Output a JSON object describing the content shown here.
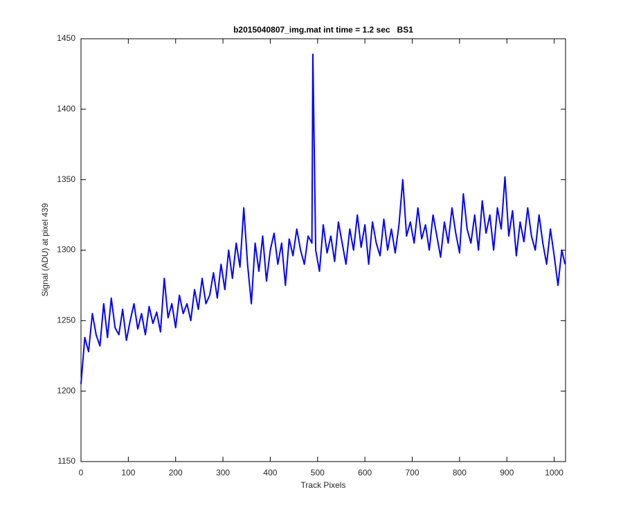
{
  "chart_data": {
    "type": "line",
    "title": "b2015040807_img.mat int time = 1.2 sec   BS1",
    "xlabel": "Track Pixels",
    "ylabel": "Signal (ADU) at pixel 439",
    "xlim": [
      0,
      1024
    ],
    "ylim": [
      1150,
      1450
    ],
    "xticks": [
      0,
      100,
      200,
      300,
      400,
      500,
      600,
      700,
      800,
      900,
      1000
    ],
    "yticks": [
      1150,
      1200,
      1250,
      1300,
      1350,
      1400,
      1450
    ],
    "grid": false,
    "x": [
      0,
      8,
      16,
      24,
      32,
      40,
      48,
      56,
      64,
      72,
      80,
      88,
      96,
      104,
      112,
      120,
      128,
      136,
      144,
      152,
      160,
      168,
      176,
      184,
      192,
      200,
      208,
      216,
      224,
      232,
      240,
      248,
      256,
      264,
      272,
      280,
      288,
      296,
      304,
      312,
      320,
      328,
      336,
      344,
      352,
      360,
      368,
      376,
      384,
      392,
      400,
      408,
      416,
      424,
      432,
      440,
      448,
      456,
      464,
      472,
      480,
      488,
      490,
      496,
      504,
      512,
      520,
      528,
      536,
      544,
      552,
      560,
      568,
      576,
      584,
      592,
      600,
      608,
      616,
      624,
      632,
      640,
      648,
      656,
      664,
      672,
      680,
      688,
      696,
      704,
      712,
      720,
      728,
      736,
      744,
      752,
      760,
      768,
      776,
      784,
      792,
      800,
      808,
      816,
      824,
      832,
      840,
      848,
      856,
      864,
      872,
      880,
      888,
      896,
      904,
      912,
      920,
      928,
      936,
      944,
      952,
      960,
      968,
      976,
      984,
      992,
      1000,
      1008,
      1016,
      1023
    ],
    "series": [
      {
        "color": "#0000ff",
        "values": [
          1205,
          1238,
          1228,
          1255,
          1240,
          1232,
          1262,
          1238,
          1266,
          1245,
          1240,
          1258,
          1236,
          1250,
          1262,
          1244,
          1255,
          1240,
          1260,
          1248,
          1256,
          1242,
          1280,
          1252,
          1262,
          1245,
          1268,
          1255,
          1262,
          1250,
          1272,
          1258,
          1280,
          1262,
          1268,
          1284,
          1266,
          1290,
          1272,
          1300,
          1280,
          1305,
          1288,
          1330,
          1290,
          1262,
          1305,
          1285,
          1310,
          1278,
          1300,
          1312,
          1290,
          1305,
          1275,
          1308,
          1296,
          1315,
          1300,
          1290,
          1310,
          1305,
          1439,
          1300,
          1285,
          1318,
          1298,
          1310,
          1292,
          1320,
          1305,
          1290,
          1315,
          1300,
          1325,
          1302,
          1318,
          1290,
          1320,
          1305,
          1296,
          1322,
          1300,
          1315,
          1298,
          1318,
          1350,
          1310,
          1320,
          1305,
          1330,
          1308,
          1318,
          1300,
          1325,
          1310,
          1295,
          1320,
          1305,
          1330,
          1312,
          1298,
          1340,
          1315,
          1305,
          1325,
          1300,
          1335,
          1312,
          1325,
          1300,
          1330,
          1315,
          1352,
          1310,
          1328,
          1296,
          1320,
          1306,
          1330,
          1310,
          1300,
          1325,
          1305,
          1290,
          1315,
          1296,
          1275,
          1300,
          1290
        ]
      }
    ]
  }
}
